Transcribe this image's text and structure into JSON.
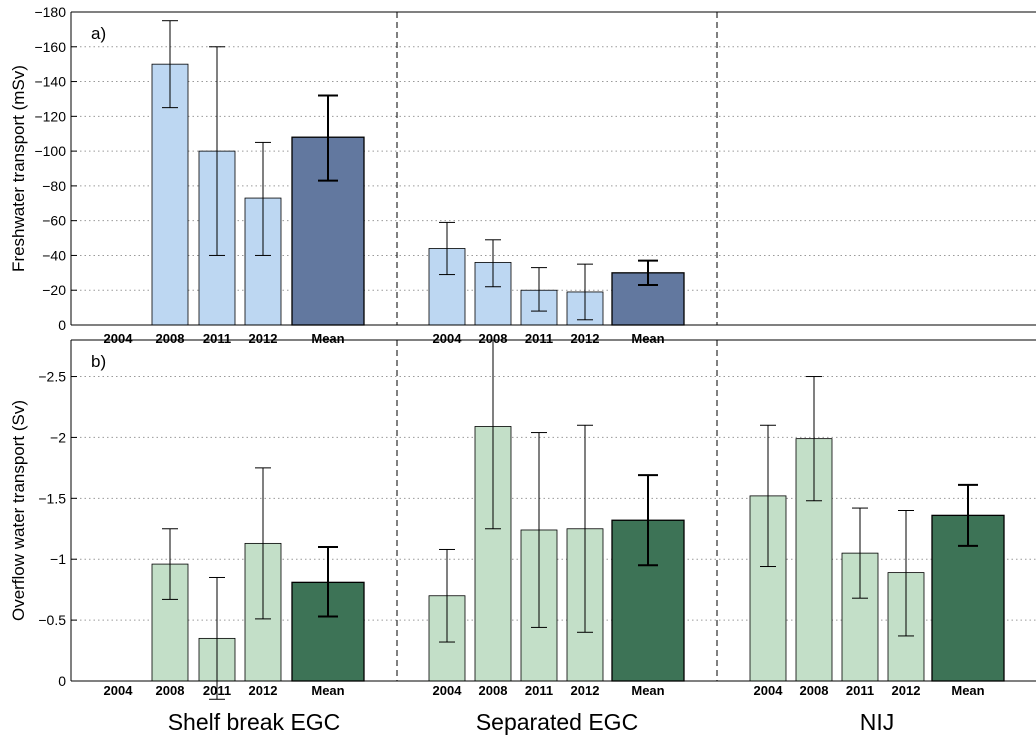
{
  "chart_data": [
    {
      "type": "bar",
      "panel_label": "a)",
      "title": "",
      "ylabel": "Freshwater transport (mSv)",
      "xlabel": "",
      "ylim": [
        0,
        -180
      ],
      "yticks": [
        0,
        -20,
        -40,
        -60,
        -80,
        -100,
        -120,
        -140,
        -160,
        -180
      ],
      "ytick_labels": [
        "0",
        "−20",
        "−40",
        "−60",
        "−80",
        "−100",
        "−120",
        "−140",
        "−160",
        "−180"
      ],
      "grid": true,
      "groups": [
        {
          "categories": [
            "2004",
            "2008",
            "2011",
            "2012",
            "Mean"
          ],
          "values": [
            null,
            -150,
            -100,
            -73,
            -108
          ],
          "err_low": [
            null,
            -125,
            -40,
            -40,
            -83
          ],
          "err_high": [
            null,
            -175,
            -160,
            -105,
            -132
          ]
        },
        {
          "categories": [
            "2004",
            "2008",
            "2011",
            "2012",
            "Mean"
          ],
          "values": [
            -44,
            -36,
            -20,
            -19,
            -30
          ],
          "err_low": [
            -29,
            -22,
            -8,
            -3,
            -23
          ],
          "err_high": [
            -59,
            -49,
            -33,
            -35,
            -37
          ]
        },
        {
          "categories": [],
          "values": [],
          "err_low": [],
          "err_high": []
        }
      ],
      "colors": {
        "year": "#bdd7f2",
        "mean": "#62789f"
      }
    },
    {
      "type": "bar",
      "panel_label": "b)",
      "title": "",
      "ylabel": "Overflow water transport (Sv)",
      "xlabel": "",
      "ylim": [
        0,
        -2.8
      ],
      "yticks": [
        0,
        -0.5,
        -1,
        -1.5,
        -2,
        -2.5
      ],
      "ytick_labels": [
        "0",
        "−0.5",
        "−1",
        "−1.5",
        "−2",
        "−2.5"
      ],
      "grid": true,
      "groups": [
        {
          "categories": [
            "2004",
            "2008",
            "2011",
            "2012",
            "Mean"
          ],
          "values": [
            null,
            -0.96,
            -0.35,
            -1.13,
            -0.81
          ],
          "err_low": [
            null,
            -0.67,
            0.15,
            -0.51,
            -0.53
          ],
          "err_high": [
            null,
            -1.25,
            -0.85,
            -1.75,
            -1.1
          ]
        },
        {
          "categories": [
            "2004",
            "2008",
            "2011",
            "2012",
            "Mean"
          ],
          "values": [
            -0.7,
            -2.09,
            -1.24,
            -1.25,
            -1.32
          ],
          "err_low": [
            -0.32,
            -1.25,
            -0.44,
            -0.4,
            -0.95
          ],
          "err_high": [
            -1.08,
            -2.93,
            -2.04,
            -2.1,
            -1.69
          ]
        },
        {
          "categories": [
            "2004",
            "2008",
            "2011",
            "2012",
            "Mean"
          ],
          "values": [
            -1.52,
            -1.99,
            -1.05,
            -0.89,
            -1.36
          ],
          "err_low": [
            -0.94,
            -1.48,
            -0.68,
            -0.37,
            -1.11
          ],
          "err_high": [
            -2.1,
            -2.5,
            -1.42,
            -1.4,
            -1.61
          ]
        }
      ],
      "colors": {
        "year": "#c3dfc8",
        "mean": "#3d7356"
      }
    }
  ],
  "group_labels": [
    "Shelf break EGC",
    "Separated EGC",
    "NIJ"
  ]
}
